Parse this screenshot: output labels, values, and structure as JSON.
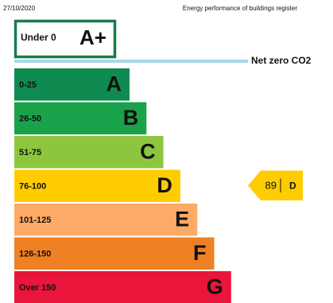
{
  "header": {
    "date": "27/10/2020",
    "register": "Energy performance of buildings register"
  },
  "top": {
    "label": "Under 0",
    "rating": "A+",
    "color": "#1a7a4c"
  },
  "net_zero": {
    "label": "Net zero CO2",
    "color": "#a6d8ea"
  },
  "bands": [
    {
      "range": "0-25",
      "rating": "A",
      "color": "#0f8a50"
    },
    {
      "range": "26-50",
      "rating": "B",
      "color": "#1aa24a"
    },
    {
      "range": "51-75",
      "rating": "C",
      "color": "#8cc63f"
    },
    {
      "range": "76-100",
      "rating": "D",
      "color": "#ffcc00"
    },
    {
      "range": "101-125",
      "rating": "E",
      "color": "#fcaa65"
    },
    {
      "range": "126-150",
      "rating": "F",
      "color": "#ef8023"
    },
    {
      "range": "Over 150",
      "rating": "G",
      "color": "#e9153b"
    }
  ],
  "current": {
    "score": 89,
    "rating": "D"
  }
}
